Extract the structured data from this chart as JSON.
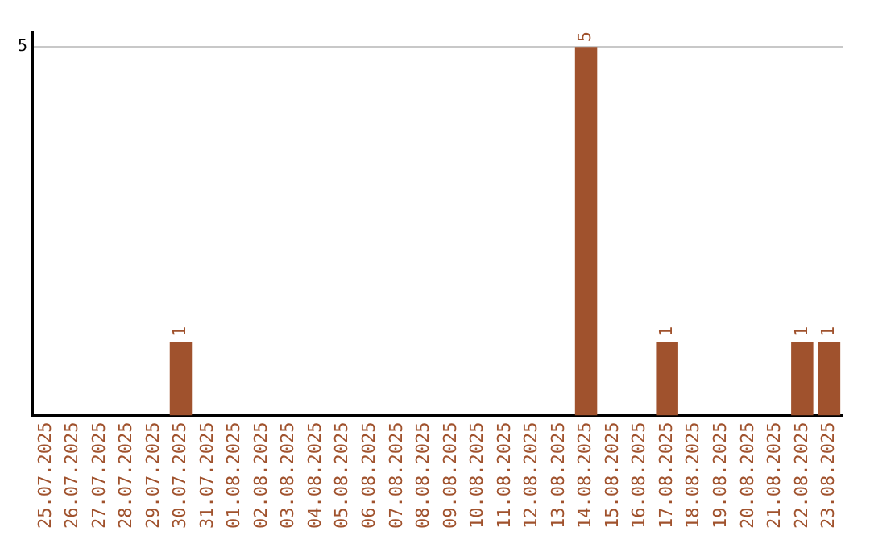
{
  "chart_data": {
    "type": "bar",
    "categories": [
      "25.07.2025",
      "26.07.2025",
      "27.07.2025",
      "28.07.2025",
      "29.07.2025",
      "30.07.2025",
      "31.07.2025",
      "01.08.2025",
      "02.08.2025",
      "03.08.2025",
      "04.08.2025",
      "05.08.2025",
      "06.08.2025",
      "07.08.2025",
      "08.08.2025",
      "09.08.2025",
      "10.08.2025",
      "11.08.2025",
      "12.08.2025",
      "13.08.2025",
      "14.08.2025",
      "15.08.2025",
      "16.08.2025",
      "17.08.2025",
      "18.08.2025",
      "19.08.2025",
      "20.08.2025",
      "21.08.2025",
      "22.08.2025",
      "23.08.2025"
    ],
    "values": [
      0,
      0,
      0,
      0,
      0,
      1,
      0,
      0,
      0,
      0,
      0,
      0,
      0,
      0,
      0,
      0,
      0,
      0,
      0,
      0,
      5,
      0,
      0,
      1,
      0,
      0,
      0,
      0,
      1,
      1
    ],
    "value_labels": [
      null,
      null,
      null,
      null,
      null,
      "1",
      null,
      null,
      null,
      null,
      null,
      null,
      null,
      null,
      null,
      null,
      null,
      null,
      null,
      null,
      "5",
      null,
      null,
      "1",
      null,
      null,
      null,
      null,
      "1",
      "1"
    ],
    "color": "#a0522d",
    "ylim": [
      0,
      5.2
    ],
    "yticks": [
      5
    ],
    "grid": "y",
    "legend": false
  }
}
